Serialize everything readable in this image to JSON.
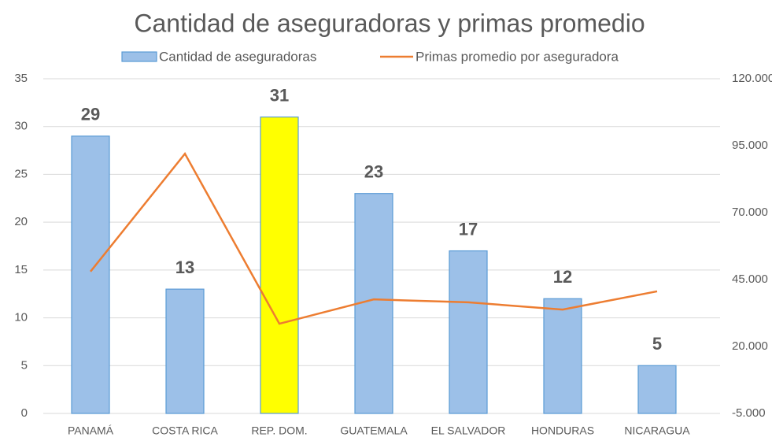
{
  "chart_data": {
    "type": "bar-line",
    "title": "Cantidad de aseguradoras y primas promedio",
    "categories": [
      "PANAMÁ",
      "COSTA RICA",
      "REP. DOM.",
      "GUATEMALA",
      "EL SALVADOR",
      "HONDURAS",
      "NICARAGUA"
    ],
    "series": [
      {
        "name": "Cantidad de aseguradoras",
        "type": "bar",
        "color": "#9cc0e8",
        "point_colors": [
          "#9cc0e8",
          "#9cc0e8",
          "#ffff00",
          "#9cc0e8",
          "#9cc0e8",
          "#9cc0e8",
          "#9cc0e8"
        ],
        "values": [
          29,
          13,
          31,
          23,
          17,
          12,
          5
        ]
      },
      {
        "name": "Primas promedio por aseguradora",
        "type": "line",
        "axis": "y2",
        "color": "#ed7d31",
        "values": [
          48000,
          92000,
          28500,
          37600,
          36500,
          33800,
          40600
        ]
      }
    ],
    "ylim": [
      0,
      35
    ],
    "yticks": [
      0,
      5,
      10,
      15,
      20,
      25,
      30,
      35
    ],
    "y2lim": [
      -5000,
      120000
    ],
    "y2ticks": [
      {
        "value": -5000,
        "label": "-5.000"
      },
      {
        "value": 20000,
        "label": "20.000"
      },
      {
        "value": 45000,
        "label": "45.000"
      },
      {
        "value": 70000,
        "label": "70.000"
      },
      {
        "value": 95000,
        "label": "95.000"
      },
      {
        "value": 120000,
        "label": "120.000"
      }
    ],
    "grid": true,
    "legend": "top"
  }
}
